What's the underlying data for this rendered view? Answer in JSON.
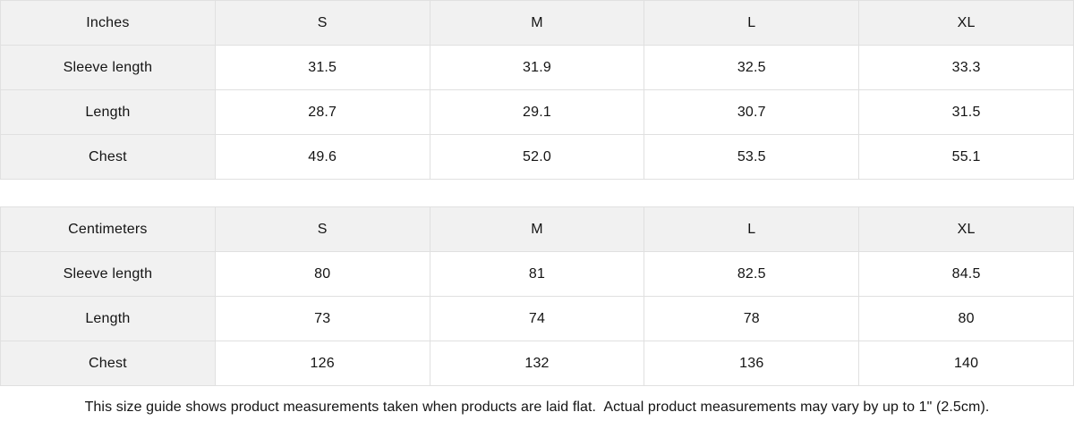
{
  "colors": {
    "header_bg": "#f1f1f1",
    "border": "#e0e0e0",
    "text": "#141414",
    "cell_bg": "#ffffff"
  },
  "tables": [
    {
      "unit_label": "Inches",
      "size_headers": [
        "S",
        "M",
        "L",
        "XL"
      ],
      "rows": [
        {
          "label": "Sleeve length",
          "values": [
            "31.5",
            "31.9",
            "32.5",
            "33.3"
          ]
        },
        {
          "label": "Length",
          "values": [
            "28.7",
            "29.1",
            "30.7",
            "31.5"
          ]
        },
        {
          "label": "Chest",
          "values": [
            "49.6",
            "52.0",
            "53.5",
            "55.1"
          ]
        }
      ]
    },
    {
      "unit_label": "Centimeters",
      "size_headers": [
        "S",
        "M",
        "L",
        "XL"
      ],
      "rows": [
        {
          "label": "Sleeve length",
          "values": [
            "80",
            "81",
            "82.5",
            "84.5"
          ]
        },
        {
          "label": "Length",
          "values": [
            "73",
            "74",
            "78",
            "80"
          ]
        },
        {
          "label": "Chest",
          "values": [
            "126",
            "132",
            "136",
            "140"
          ]
        }
      ]
    }
  ],
  "footer": {
    "note": "This size guide shows product measurements taken when products are laid flat.  Actual product measurements may vary by up to 1\" (2.5cm)."
  },
  "chart_data": [
    {
      "type": "table",
      "title": "Inches",
      "columns": [
        "Inches",
        "S",
        "M",
        "L",
        "XL"
      ],
      "rows": [
        [
          "Sleeve length",
          "31.5",
          "31.9",
          "32.5",
          "33.3"
        ],
        [
          "Length",
          "28.7",
          "29.1",
          "30.7",
          "31.5"
        ],
        [
          "Chest",
          "49.6",
          "52.0",
          "53.5",
          "55.1"
        ]
      ]
    },
    {
      "type": "table",
      "title": "Centimeters",
      "columns": [
        "Centimeters",
        "S",
        "M",
        "L",
        "XL"
      ],
      "rows": [
        [
          "Sleeve length",
          "80",
          "81",
          "82.5",
          "84.5"
        ],
        [
          "Length",
          "73",
          "74",
          "78",
          "80"
        ],
        [
          "Chest",
          "126",
          "132",
          "136",
          "140"
        ]
      ]
    }
  ]
}
